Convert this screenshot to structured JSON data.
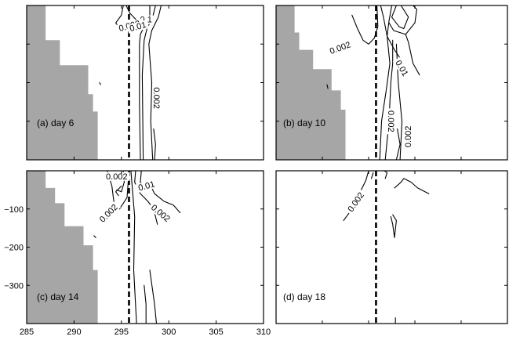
{
  "chart_data": {
    "type": "contour",
    "shared_axes": {
      "xlim": [
        285,
        310
      ],
      "ylim": [
        -400,
        0
      ],
      "x_ticks": [
        285,
        290,
        295,
        300,
        305,
        310
      ],
      "y_ticks": [
        -100,
        -200,
        -300
      ],
      "x_tick_labels": [
        "285",
        "290",
        "295",
        "300",
        "305",
        "310"
      ],
      "y_tick_labels": [
        "−100",
        "−200",
        "−300"
      ]
    },
    "colors": {
      "land": "#a6a6a6",
      "lines": "#000000"
    },
    "panels": [
      {
        "id": "a",
        "label": "(a)  day 6",
        "dashed_x": 295.8,
        "land": [
          [
            285,
            0
          ],
          [
            287,
            0
          ],
          [
            287,
            -90
          ],
          [
            288.5,
            -90
          ],
          [
            288.5,
            -155
          ],
          [
            291.5,
            -155
          ],
          [
            291.5,
            -230
          ],
          [
            292,
            -230
          ],
          [
            292,
            -275
          ],
          [
            292.5,
            -275
          ],
          [
            292.5,
            -400
          ],
          [
            285,
            -400
          ]
        ],
        "contour_labels": [
          {
            "text": "0.1",
            "x": 297.6,
            "y": -42,
            "rot": 0
          },
          {
            "text": "0.002",
            "x": 295.9,
            "y": -58,
            "rot": -15
          },
          {
            "text": "0.01",
            "x": 296.8,
            "y": -60,
            "rot": -15
          },
          {
            "text": "0.002",
            "x": 298.5,
            "y": -240,
            "rot": 90
          }
        ],
        "contours": [
          [
            [
              295.2,
              0
            ],
            [
              295.0,
              -25
            ],
            [
              294.4,
              -45
            ],
            [
              294.8,
              -58
            ],
            [
              295.6,
              -55
            ],
            [
              296.2,
              -45
            ]
          ],
          [
            [
              295.5,
              0
            ],
            [
              295.9,
              -20
            ],
            [
              296.6,
              -38
            ],
            [
              297.3,
              -50
            ],
            [
              297.6,
              -46
            ]
          ],
          [
            [
              297.8,
              -40
            ],
            [
              298.0,
              -25
            ],
            [
              298.0,
              0
            ]
          ],
          [
            [
              298.6,
              0
            ],
            [
              298.3,
              -30
            ],
            [
              297.7,
              -60
            ],
            [
              297.4,
              -90
            ],
            [
              297.2,
              -180
            ],
            [
              297.3,
              -400
            ]
          ],
          [
            [
              299.2,
              0
            ],
            [
              298.9,
              -30
            ],
            [
              298.2,
              -65
            ],
            [
              297.9,
              -100
            ],
            [
              298.2,
              -200
            ],
            [
              298.1,
              -300
            ],
            [
              298.3,
              -400
            ]
          ],
          [
            [
              297.3,
              -60
            ],
            [
              297.0,
              -75
            ],
            [
              296.9,
              -100
            ],
            [
              296.9,
              -250
            ],
            [
              297.0,
              -400
            ]
          ],
          [
            [
              298.4,
              -320
            ],
            [
              298.6,
              -360
            ],
            [
              298.5,
              -400
            ]
          ],
          [
            [
              292.7,
              -200
            ],
            [
              292.8,
              -205
            ]
          ]
        ]
      },
      {
        "id": "b",
        "label": "(b)  day 10",
        "dashed_x": 295.8,
        "land": [
          [
            285,
            0
          ],
          [
            287,
            0
          ],
          [
            287,
            -70
          ],
          [
            287.5,
            -70
          ],
          [
            287.5,
            -115
          ],
          [
            289,
            -115
          ],
          [
            289,
            -165
          ],
          [
            291,
            -165
          ],
          [
            291,
            -220
          ],
          [
            292,
            -220
          ],
          [
            292,
            -270
          ],
          [
            292.5,
            -270
          ],
          [
            292.5,
            -400
          ],
          [
            285,
            -400
          ]
        ],
        "contour_labels": [
          {
            "text": "0.002",
            "x": 292.0,
            "y": -115,
            "rot": -20
          },
          {
            "text": "0.01",
            "x": 298.4,
            "y": -165,
            "rot": 60
          },
          {
            "text": "0.002",
            "x": 297.2,
            "y": -300,
            "rot": 90
          },
          {
            "text": "0.002",
            "x": 299.5,
            "y": -340,
            "rot": -90
          }
        ],
        "contours": [
          [
            [
              293.2,
              -25
            ],
            [
              293.8,
              -60
            ],
            [
              294.4,
              -90
            ],
            [
              295.0,
              -100
            ],
            [
              295.6,
              -85
            ],
            [
              296.0,
              -55
            ],
            [
              295.9,
              0
            ]
          ],
          [
            [
              296.3,
              0
            ],
            [
              296.6,
              -30
            ],
            [
              297.0,
              -80
            ],
            [
              297.8,
              -115
            ],
            [
              298.5,
              -140
            ]
          ],
          [
            [
              297.5,
              0
            ],
            [
              297.2,
              -40
            ],
            [
              297.0,
              -80
            ],
            [
              297.3,
              -150
            ],
            [
              296.9,
              -220
            ],
            [
              296.4,
              -300
            ],
            [
              296.2,
              -400
            ]
          ],
          [
            [
              297.6,
              -90
            ],
            [
              297.6,
              -150
            ],
            [
              297.4,
              -200
            ],
            [
              297.2,
              -300
            ],
            [
              296.8,
              -400
            ]
          ],
          [
            [
              298.0,
              0
            ],
            [
              297.5,
              -30
            ],
            [
              298.3,
              -55
            ],
            [
              298.8,
              -60
            ],
            [
              299.3,
              -30
            ],
            [
              298.5,
              0
            ]
          ],
          [
            [
              297.2,
              -45
            ],
            [
              297.7,
              -65
            ],
            [
              299.0,
              -75
            ],
            [
              300.0,
              -45
            ],
            [
              300.2,
              -10
            ],
            [
              299.8,
              0
            ]
          ],
          [
            [
              299.0,
              -75
            ],
            [
              299.3,
              -95
            ],
            [
              299.8,
              -150
            ],
            [
              300.5,
              -180
            ]
          ],
          [
            [
              298.0,
              -100
            ],
            [
              298.2,
              -200
            ],
            [
              298.6,
              -300
            ],
            [
              298.4,
              -400
            ]
          ],
          [
            [
              298.1,
              -320
            ],
            [
              298.4,
              -360
            ],
            [
              298.0,
              -400
            ]
          ],
          [
            [
              290.5,
              -205
            ],
            [
              290.6,
              -215
            ]
          ]
        ]
      },
      {
        "id": "c",
        "label": "(c)  day 14",
        "dashed_x": 295.8,
        "land": [
          [
            285,
            0
          ],
          [
            287,
            0
          ],
          [
            287,
            -45
          ],
          [
            288,
            -45
          ],
          [
            288,
            -85
          ],
          [
            289,
            -85
          ],
          [
            289,
            -145
          ],
          [
            291,
            -145
          ],
          [
            291,
            -195
          ],
          [
            292,
            -195
          ],
          [
            292,
            -260
          ],
          [
            292.5,
            -260
          ],
          [
            292.5,
            -400
          ],
          [
            285,
            -400
          ]
        ],
        "contour_labels": [
          {
            "text": "0.01",
            "x": 297.7,
            "y": -45,
            "rot": -15
          },
          {
            "text": "0.002",
            "x": 293.8,
            "y": -115,
            "rot": -45
          },
          {
            "text": "0.002",
            "x": 299.0,
            "y": -115,
            "rot": 40
          },
          {
            "text": "0.002",
            "x": 294.5,
            "y": -20,
            "rot": 0
          }
        ],
        "contours": [
          [
            [
              293.5,
              0
            ],
            [
              294.0,
              -40
            ],
            [
              294.2,
              -80
            ],
            [
              294.8,
              -100
            ],
            [
              295.6,
              -70
            ],
            [
              295.8,
              0
            ]
          ],
          [
            [
              295.2,
              0
            ],
            [
              295.3,
              -30
            ],
            [
              295.0,
              -55
            ],
            [
              294.5,
              -50
            ]
          ],
          [
            [
              296.5,
              0
            ],
            [
              296.4,
              -30
            ],
            [
              297.0,
              -60
            ],
            [
              297.8,
              -80
            ],
            [
              298.4,
              -100
            ],
            [
              298.8,
              -140
            ]
          ],
          [
            [
              297.1,
              0
            ],
            [
              297.0,
              -30
            ],
            [
              297.6,
              -45
            ],
            [
              298.1,
              -40
            ],
            [
              298.5,
              -60
            ],
            [
              299.5,
              -80
            ],
            [
              300.5,
              -90
            ],
            [
              301.2,
              -110
            ]
          ],
          [
            [
              296.0,
              0
            ],
            [
              296.4,
              -120
            ],
            [
              296.3,
              -260
            ],
            [
              296.6,
              -400
            ]
          ],
          [
            [
              297.4,
              -300
            ],
            [
              297.6,
              -350
            ],
            [
              297.6,
              -400
            ]
          ],
          [
            [
              298.0,
              -260
            ],
            [
              298.5,
              -350
            ],
            [
              298.7,
              -400
            ]
          ],
          [
            [
              295.0,
              -40
            ],
            [
              294.4,
              -55
            ],
            [
              294.7,
              -65
            ]
          ],
          [
            [
              292.1,
              -170
            ],
            [
              292.3,
              -175
            ]
          ]
        ]
      },
      {
        "id": "d",
        "label": "(d)  day 18",
        "dashed_x": 295.8,
        "land": [],
        "contour_labels": [
          {
            "text": "0.002",
            "x": 293.8,
            "y": -85,
            "rot": -55
          }
        ],
        "contours": [
          [
            [
              295.0,
              0
            ],
            [
              294.7,
              -25
            ],
            [
              294.0,
              -60
            ],
            [
              293.2,
              -100
            ],
            [
              292.3,
              -130
            ]
          ],
          [
            [
              295.3,
              -20
            ],
            [
              295.5,
              -5
            ]
          ],
          [
            [
              296.8,
              -20
            ],
            [
              297.0,
              -5
            ],
            [
              296.7,
              0
            ]
          ],
          [
            [
              297.8,
              -45
            ],
            [
              298.5,
              -30
            ],
            [
              298.8,
              -20
            ],
            [
              299.6,
              -30
            ],
            [
              300.3,
              -45
            ],
            [
              301.5,
              -60
            ]
          ],
          [
            [
              297.4,
              -120
            ],
            [
              297.6,
              -140
            ],
            [
              297.8,
              -175
            ],
            [
              298.0,
              -130
            ],
            [
              297.6,
              -115
            ]
          ],
          [
            [
              297.9,
              -385
            ],
            [
              297.9,
              -400
            ]
          ]
        ]
      }
    ]
  }
}
